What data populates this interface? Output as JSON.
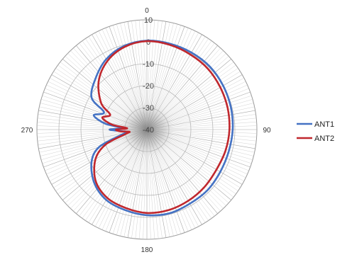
{
  "chart_data": {
    "type": "line",
    "subtype": "polar",
    "title": "",
    "angle_axis": {
      "unit": "degrees",
      "direction": "clockwise",
      "zero_location": "top",
      "labels": [
        {
          "angle": 0,
          "text": "0"
        },
        {
          "angle": 90,
          "text": "90"
        },
        {
          "angle": 180,
          "text": "180"
        },
        {
          "angle": 270,
          "text": "270"
        }
      ],
      "spoke_step": 2
    },
    "radial_axis": {
      "range": [
        -40,
        10
      ],
      "ticks": [
        10,
        0,
        -10,
        -20,
        -30,
        -40
      ],
      "tick_labels": [
        "10",
        "0",
        "-10",
        "-20",
        "-30",
        "-40"
      ],
      "label_angle": 0
    },
    "grid": true,
    "legend": {
      "position": "right"
    },
    "series": [
      {
        "name": "ANT1",
        "color": "#4472c4",
        "angles": [
          0,
          15,
          30,
          45,
          60,
          75,
          90,
          105,
          120,
          135,
          150,
          165,
          180,
          195,
          210,
          225,
          240,
          250,
          258,
          263,
          266,
          270,
          274,
          278,
          285,
          292,
          300,
          315,
          330,
          345
        ],
        "values": [
          0.5,
          0.5,
          0.5,
          0.5,
          0,
          -0.5,
          -1,
          -1.5,
          -1.5,
          -1,
          -1,
          -0.5,
          -1,
          -2,
          -3,
          -6,
          -11,
          -17,
          -28,
          -31,
          -29,
          -23,
          -29,
          -21,
          -15,
          -19,
          -11,
          -7,
          -3,
          -0.5
        ]
      },
      {
        "name": "ANT2",
        "color": "#c0272d",
        "angles": [
          0,
          15,
          30,
          45,
          60,
          75,
          90,
          105,
          120,
          135,
          150,
          165,
          180,
          195,
          210,
          225,
          240,
          250,
          258,
          263,
          266,
          270,
          274,
          278,
          285,
          292,
          300,
          315,
          330,
          345
        ],
        "values": [
          0.3,
          0,
          -0.5,
          -0.8,
          -1.5,
          -2,
          -2.5,
          -3,
          -3.5,
          -3,
          -2.5,
          -2,
          -2,
          -3,
          -4,
          -7,
          -13,
          -20,
          -30,
          -32,
          -28,
          -26,
          -31,
          -24,
          -19,
          -22,
          -16,
          -9,
          -4,
          -1
        ]
      }
    ]
  }
}
